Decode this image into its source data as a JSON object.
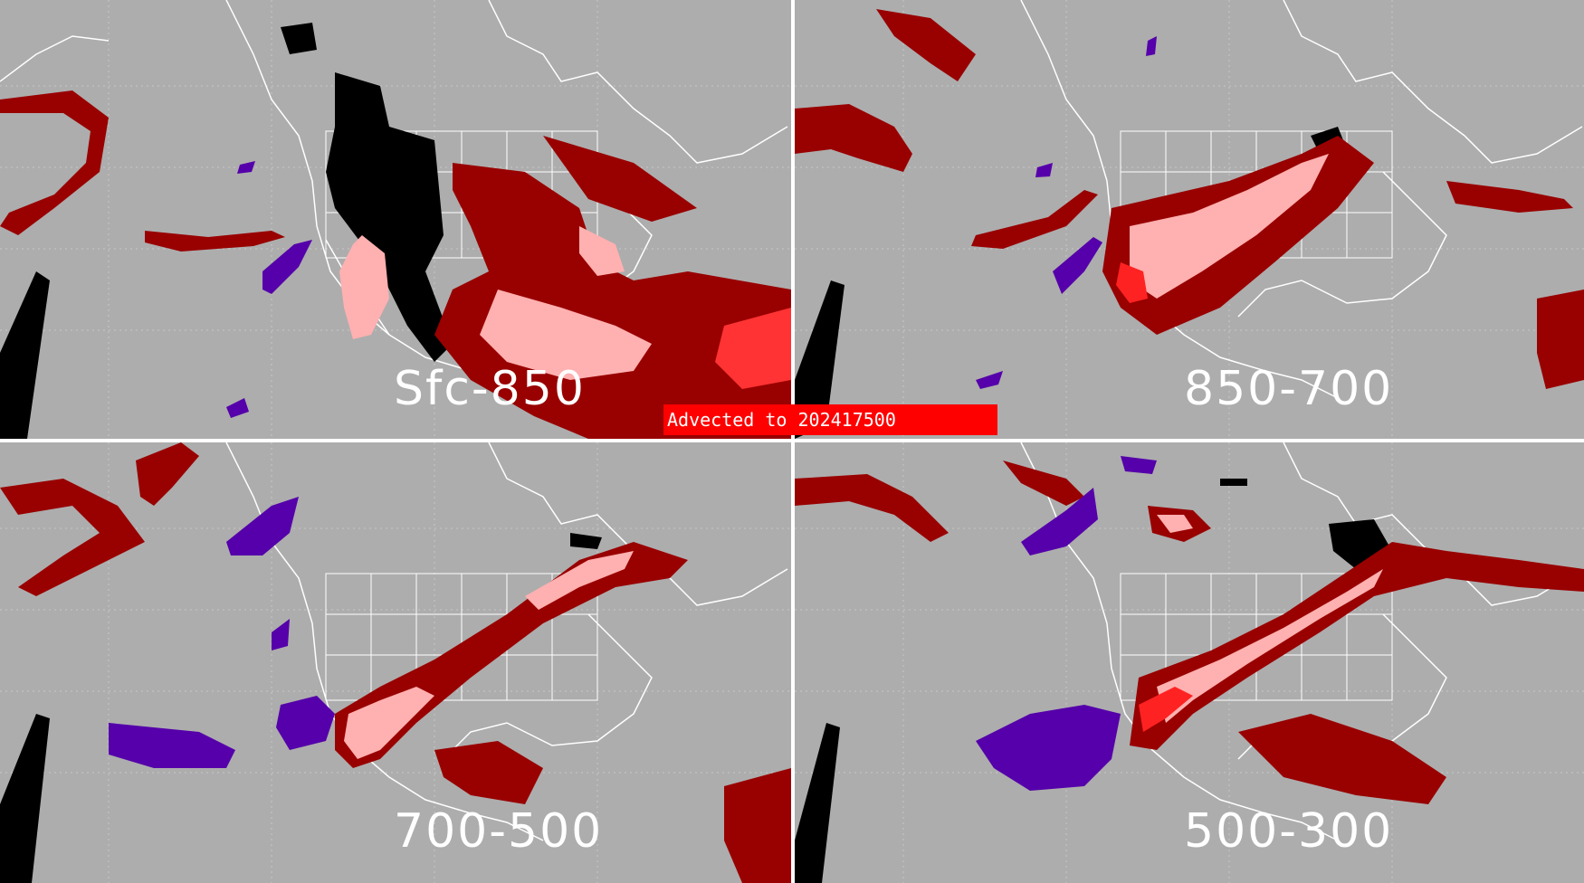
{
  "banner": {
    "prefix": "Advected to",
    "value": "202417500"
  },
  "panels": [
    {
      "label": "Sfc-850"
    },
    {
      "label": "850-700"
    },
    {
      "label": "700-500"
    },
    {
      "label": "500-300"
    }
  ],
  "colors": {
    "background": "#adadad",
    "dark_red": "#990000",
    "pink": "#ffb0b0",
    "bright_red": "#ff0000",
    "purple": "#5500aa",
    "black": "#000000",
    "outline": "#ffffff",
    "banner_bg": "#ff0000"
  }
}
